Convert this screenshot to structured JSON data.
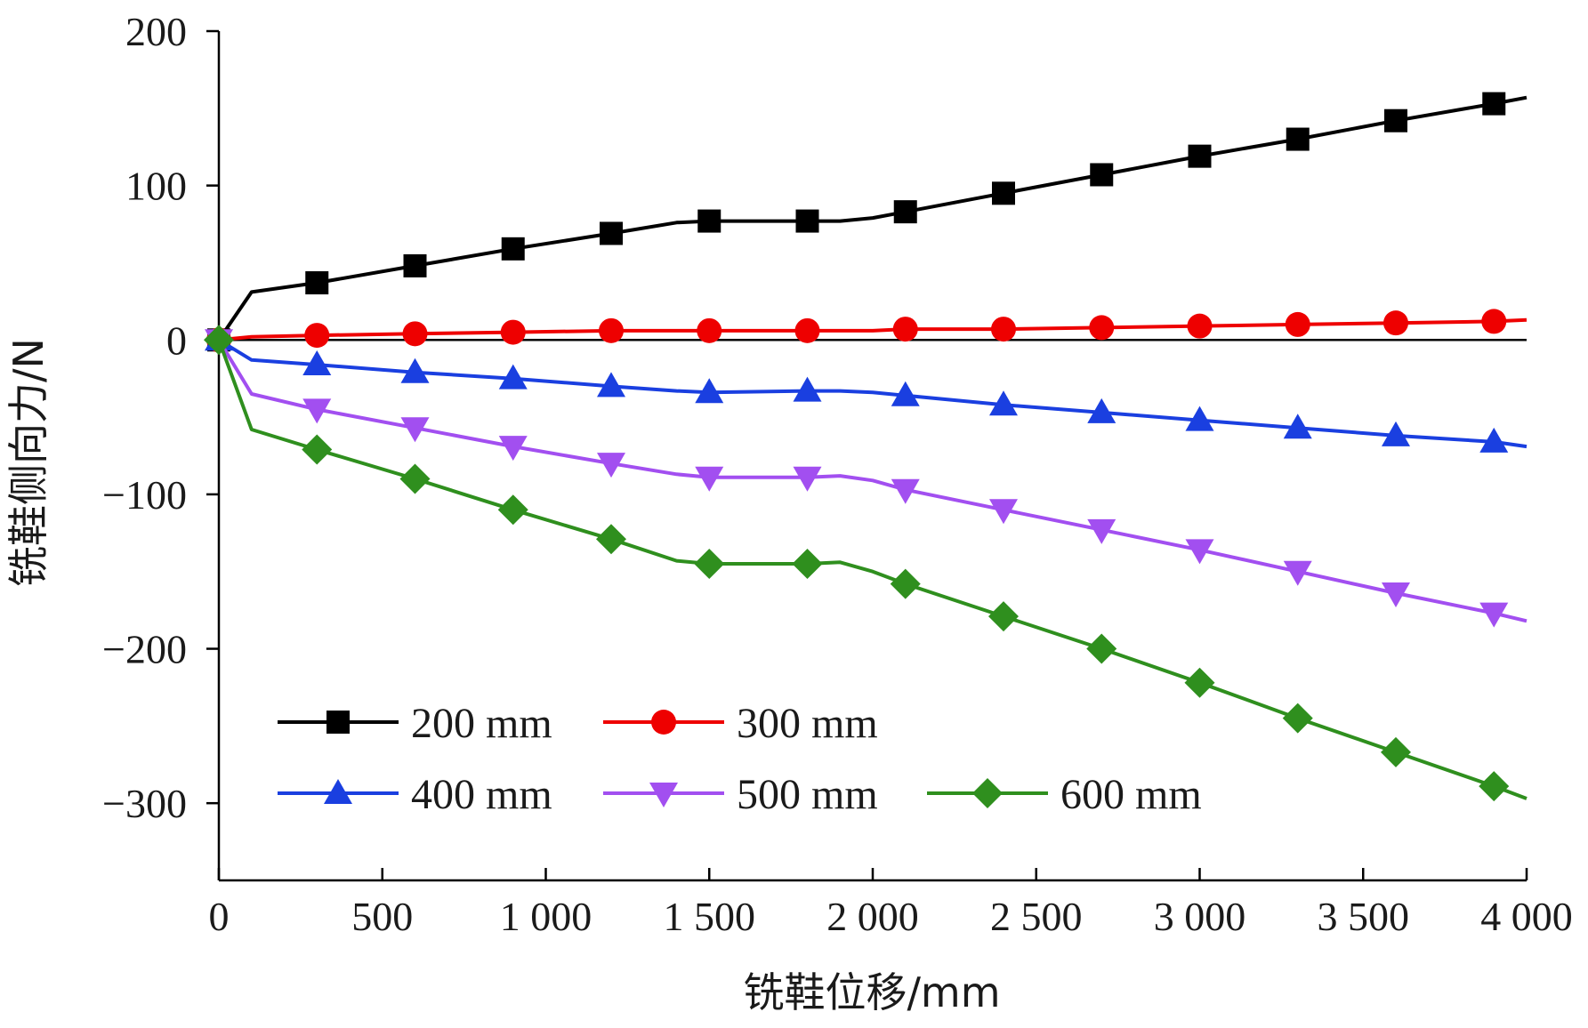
{
  "chart_data": {
    "type": "line",
    "xlabel": "铣鞋位移/mm",
    "ylabel": "铣鞋侧向力/N",
    "xlim": [
      0,
      4000
    ],
    "ylim": [
      -350,
      200
    ],
    "x_ticks": [
      0,
      500,
      1000,
      1500,
      2000,
      2500,
      3000,
      3500,
      4000
    ],
    "x_tick_labels": [
      "0",
      "500",
      "1 000",
      "1 500",
      "2 000",
      "2 500",
      "3 000",
      "3 500",
      "4 000"
    ],
    "y_ticks": [
      200,
      100,
      0,
      -100,
      -200,
      -300
    ],
    "y_tick_labels": [
      "200",
      "100",
      "0",
      "−100",
      "−200",
      "−300"
    ],
    "zero_line": true,
    "grid": false,
    "legend_position": "bottom-left",
    "x": [
      0,
      100,
      300,
      600,
      900,
      1200,
      1400,
      1500,
      1800,
      1900,
      2000,
      2100,
      2400,
      2700,
      3000,
      3300,
      3600,
      3900,
      4000
    ],
    "marker_x": [
      0,
      300,
      600,
      900,
      1200,
      1500,
      1800,
      2100,
      2400,
      2700,
      3000,
      3300,
      3600,
      3900
    ],
    "series": [
      {
        "name": "200 mm",
        "color": "#000000",
        "marker": "square",
        "values": [
          0,
          31,
          37,
          48,
          59,
          69,
          76,
          77,
          77,
          77,
          79,
          83,
          95,
          107,
          119,
          130,
          142,
          153,
          157
        ]
      },
      {
        "name": "300 mm",
        "color": "#ee0000",
        "marker": "circle",
        "values": [
          0,
          2,
          3,
          4,
          5,
          6,
          6,
          6,
          6,
          6,
          6,
          7,
          7,
          8,
          9,
          10,
          11,
          12,
          13
        ]
      },
      {
        "name": "400 mm",
        "color": "#1a3fe0",
        "marker": "triangle-up",
        "values": [
          0,
          -13,
          -16,
          -21,
          -25,
          -30,
          -33,
          -34,
          -33,
          -33,
          -34,
          -36,
          -42,
          -47,
          -52,
          -57,
          -62,
          -66,
          -69
        ]
      },
      {
        "name": "500 mm",
        "color": "#a24ff0",
        "marker": "triangle-down",
        "values": [
          0,
          -35,
          -45,
          -57,
          -69,
          -80,
          -87,
          -89,
          -89,
          -88,
          -91,
          -97,
          -110,
          -123,
          -136,
          -150,
          -164,
          -177,
          -182
        ]
      },
      {
        "name": "600 mm",
        "color": "#2f8f1e",
        "marker": "diamond",
        "values": [
          0,
          -58,
          -71,
          -90,
          -110,
          -129,
          -143,
          -145,
          -145,
          -144,
          -150,
          -158,
          -179,
          -200,
          -222,
          -245,
          -267,
          -289,
          -297
        ]
      }
    ]
  }
}
